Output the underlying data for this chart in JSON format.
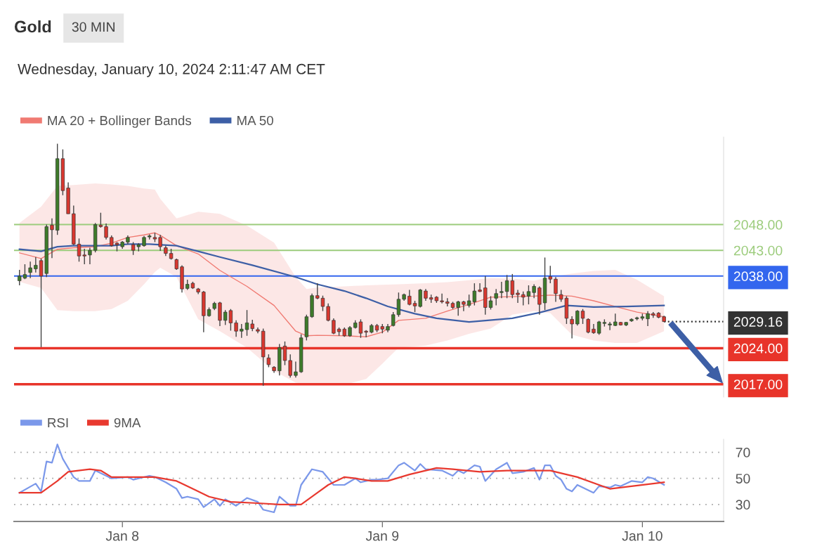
{
  "chart_data": [
    {
      "type": "candlestick",
      "title": "Gold",
      "subtitle": "30 MIN",
      "annotations": [
        "Wednesday, January 10, 2024 2:11:47 AM CET"
      ],
      "x": [
        "2024-01-07T14:30",
        "2024-01-07T15:00",
        "2024-01-07T15:30",
        "2024-01-07T16:00",
        "2024-01-07T16:30",
        "2024-01-07T17:00",
        "2024-01-07T17:30",
        "2024-01-07T18:00",
        "2024-01-07T18:30",
        "2024-01-07T19:00",
        "2024-01-07T19:30",
        "2024-01-07T20:00",
        "2024-01-07T20:30",
        "2024-01-07T21:00",
        "2024-01-07T21:30",
        "2024-01-07T22:00",
        "2024-01-07T22:30",
        "2024-01-07T23:00",
        "2024-01-07T23:30",
        "2024-01-08T00:00",
        "2024-01-08T00:30",
        "2024-01-08T01:00",
        "2024-01-08T01:30",
        "2024-01-08T02:00",
        "2024-01-08T02:30",
        "2024-01-08T03:00",
        "2024-01-08T03:30",
        "2024-01-08T04:00",
        "2024-01-08T04:30",
        "2024-01-08T05:00",
        "2024-01-08T05:30",
        "2024-01-08T06:00",
        "2024-01-08T06:30",
        "2024-01-08T07:00",
        "2024-01-08T07:30",
        "2024-01-08T08:00",
        "2024-01-08T08:30",
        "2024-01-08T09:00",
        "2024-01-08T09:30",
        "2024-01-08T10:00",
        "2024-01-08T10:30",
        "2024-01-08T11:00",
        "2024-01-08T11:30",
        "2024-01-08T12:00",
        "2024-01-08T12:30",
        "2024-01-08T13:00",
        "2024-01-08T13:30",
        "2024-01-08T14:00",
        "2024-01-08T14:30",
        "2024-01-08T15:00",
        "2024-01-08T15:30",
        "2024-01-08T16:00",
        "2024-01-08T16:30",
        "2024-01-08T17:00",
        "2024-01-08T17:30",
        "2024-01-08T18:00",
        "2024-01-08T18:30",
        "2024-01-08T19:00",
        "2024-01-08T19:30",
        "2024-01-08T20:00",
        "2024-01-08T20:30",
        "2024-01-08T21:00",
        "2024-01-08T21:30",
        "2024-01-08T22:00",
        "2024-01-08T22:30",
        "2024-01-08T23:00",
        "2024-01-08T23:30",
        "2024-01-09T00:00",
        "2024-01-09T00:30",
        "2024-01-09T01:00",
        "2024-01-09T01:30",
        "2024-01-09T02:00",
        "2024-01-09T02:30",
        "2024-01-09T03:00",
        "2024-01-09T03:30",
        "2024-01-09T04:00",
        "2024-01-09T04:30",
        "2024-01-09T05:00",
        "2024-01-09T05:30",
        "2024-01-09T06:00",
        "2024-01-09T06:30",
        "2024-01-09T07:00",
        "2024-01-09T07:30",
        "2024-01-09T08:00",
        "2024-01-09T08:30",
        "2024-01-09T09:00",
        "2024-01-09T09:30",
        "2024-01-09T10:00",
        "2024-01-09T10:30",
        "2024-01-09T11:00",
        "2024-01-09T11:30",
        "2024-01-09T12:00",
        "2024-01-09T12:30",
        "2024-01-09T13:00",
        "2024-01-09T13:30",
        "2024-01-09T14:00",
        "2024-01-09T14:30",
        "2024-01-09T15:00",
        "2024-01-09T15:30",
        "2024-01-09T16:00",
        "2024-01-09T16:30",
        "2024-01-09T17:00",
        "2024-01-09T17:30",
        "2024-01-09T18:00",
        "2024-01-09T18:30",
        "2024-01-09T19:00",
        "2024-01-09T19:30",
        "2024-01-09T20:00",
        "2024-01-09T20:30",
        "2024-01-09T21:00",
        "2024-01-09T21:30",
        "2024-01-09T22:00",
        "2024-01-09T22:30",
        "2024-01-09T23:00",
        "2024-01-09T23:30",
        "2024-01-10T00:00",
        "2024-01-10T00:30",
        "2024-01-10T01:00",
        "2024-01-10T01:30",
        "2024-01-10T02:00"
      ],
      "ohlc": [
        [
          2037.1,
          2039.2,
          2036.2,
          2038.0
        ],
        [
          2037.6,
          2040.3,
          2037.4,
          2038.3
        ],
        [
          2038.7,
          2040.8,
          2037.6,
          2039.6
        ],
        [
          2039.4,
          2041.7,
          2038.7,
          2040.1
        ],
        [
          2041.0,
          2041.4,
          2024.2,
          2038.0
        ],
        [
          2038.5,
          2048.0,
          2037.8,
          2047.6
        ],
        [
          2047.9,
          2049.2,
          2041.5,
          2047.0
        ],
        [
          2046.9,
          2063.7,
          2046.0,
          2060.8
        ],
        [
          2060.8,
          2062.6,
          2053.7,
          2054.6
        ],
        [
          2055.1,
          2056.2,
          2050.1,
          2050.1
        ],
        [
          2050.1,
          2051.7,
          2044.0,
          2044.2
        ],
        [
          2044.2,
          2045.3,
          2040.8,
          2041.9
        ],
        [
          2042.1,
          2043.3,
          2040.3,
          2041.9
        ],
        [
          2042.1,
          2043.5,
          2040.3,
          2043.0
        ],
        [
          2043.0,
          2048.3,
          2042.6,
          2048.0
        ],
        [
          2047.9,
          2050.3,
          2047.4,
          2047.6
        ],
        [
          2047.6,
          2048.2,
          2045.1,
          2045.5
        ],
        [
          2045.5,
          2045.9,
          2043.7,
          2043.9
        ],
        [
          2044.4,
          2044.6,
          2042.8,
          2044.1
        ],
        [
          2043.7,
          2044.8,
          2043.3,
          2044.6
        ],
        [
          2044.6,
          2045.9,
          2044.2,
          2045.5
        ],
        [
          2044.1,
          2044.6,
          2042.1,
          2043.0
        ],
        [
          2043.7,
          2044.4,
          2042.8,
          2044.1
        ],
        [
          2043.9,
          2045.8,
          2043.7,
          2045.5
        ],
        [
          2045.6,
          2046.1,
          2045.1,
          2045.8
        ],
        [
          2045.5,
          2046.4,
          2044.6,
          2045.2
        ],
        [
          2045.5,
          2046.0,
          2042.9,
          2043.7
        ],
        [
          2043.5,
          2043.9,
          2041.9,
          2042.4
        ],
        [
          2042.4,
          2043.3,
          2041.2,
          2041.4
        ],
        [
          2041.2,
          2041.4,
          2039.2,
          2039.4
        ],
        [
          2039.8,
          2040.1,
          2034.8,
          2035.5
        ],
        [
          2035.6,
          2037.3,
          2035.3,
          2036.4
        ],
        [
          2036.6,
          2036.9,
          2035.5,
          2035.7
        ],
        [
          2035.5,
          2035.7,
          2034.5,
          2034.9
        ],
        [
          2034.9,
          2035.1,
          2027.1,
          2030.3
        ],
        [
          2030.3,
          2031.9,
          2030.1,
          2031.5
        ],
        [
          2031.7,
          2033.0,
          2031.4,
          2032.7
        ],
        [
          2032.8,
          2033.0,
          2028.3,
          2029.4
        ],
        [
          2029.4,
          2031.4,
          2028.5,
          2031.0
        ],
        [
          2031.3,
          2031.6,
          2027.4,
          2028.9
        ],
        [
          2028.9,
          2029.4,
          2026.2,
          2027.3
        ],
        [
          2027.3,
          2028.7,
          2026.0,
          2027.7
        ],
        [
          2027.6,
          2031.4,
          2026.4,
          2028.9
        ],
        [
          2028.7,
          2029.5,
          2027.3,
          2027.8
        ],
        [
          2027.6,
          2028.0,
          2026.9,
          2027.3
        ],
        [
          2027.3,
          2027.8,
          2016.7,
          2022.3
        ],
        [
          2022.1,
          2022.8,
          2020.3,
          2020.8
        ],
        [
          2020.3,
          2020.5,
          2019.2,
          2019.6
        ],
        [
          2019.6,
          2024.8,
          2018.7,
          2024.1
        ],
        [
          2024.4,
          2025.3,
          2020.7,
          2021.6
        ],
        [
          2021.6,
          2022.8,
          2018.3,
          2018.7
        ],
        [
          2018.7,
          2021.4,
          2018.3,
          2019.4
        ],
        [
          2019.4,
          2026.7,
          2019.2,
          2026.0
        ],
        [
          2026.2,
          2030.5,
          2025.5,
          2030.1
        ],
        [
          2030.1,
          2034.6,
          2029.9,
          2034.2
        ],
        [
          2034.2,
          2036.6,
          2033.5,
          2033.7
        ],
        [
          2033.7,
          2034.2,
          2031.2,
          2032.1
        ],
        [
          2032.1,
          2032.7,
          2029.2,
          2029.4
        ],
        [
          2029.4,
          2029.8,
          2026.7,
          2026.9
        ],
        [
          2027.7,
          2028.0,
          2026.4,
          2027.2
        ],
        [
          2027.7,
          2028.0,
          2026.2,
          2026.4
        ],
        [
          2026.4,
          2028.3,
          2026.2,
          2028.0
        ],
        [
          2028.0,
          2029.4,
          2027.8,
          2028.9
        ],
        [
          2029.1,
          2029.6,
          2026.0,
          2026.9
        ],
        [
          2027.3,
          2027.5,
          2026.1,
          2027.1
        ],
        [
          2027.1,
          2028.7,
          2026.9,
          2028.4
        ],
        [
          2028.4,
          2028.7,
          2027.1,
          2027.5
        ],
        [
          2028.2,
          2028.7,
          2026.9,
          2027.7
        ],
        [
          2027.5,
          2028.7,
          2027.1,
          2028.2
        ],
        [
          2028.4,
          2031.0,
          2028.2,
          2030.5
        ],
        [
          2030.5,
          2034.8,
          2030.1,
          2033.5
        ],
        [
          2033.5,
          2034.6,
          2033.2,
          2034.4
        ],
        [
          2034.1,
          2035.3,
          2032.3,
          2032.5
        ],
        [
          2032.7,
          2033.2,
          2031.0,
          2032.2
        ],
        [
          2032.1,
          2035.5,
          2031.9,
          2035.3
        ],
        [
          2035.1,
          2035.5,
          2033.2,
          2033.7
        ],
        [
          2033.8,
          2034.4,
          2032.8,
          2033.5
        ],
        [
          2033.9,
          2034.1,
          2032.8,
          2033.2
        ],
        [
          2033.2,
          2034.6,
          2032.7,
          2033.0
        ],
        [
          2033.0,
          2033.7,
          2032.1,
          2032.7
        ],
        [
          2032.7,
          2033.0,
          2031.6,
          2031.9
        ],
        [
          2031.9,
          2033.2,
          2030.3,
          2033.0
        ],
        [
          2033.0,
          2033.2,
          2031.2,
          2032.5
        ],
        [
          2032.3,
          2034.4,
          2031.9,
          2033.2
        ],
        [
          2033.0,
          2036.6,
          2032.3,
          2035.1
        ],
        [
          2035.3,
          2036.6,
          2034.9,
          2035.0
        ],
        [
          2035.7,
          2038.0,
          2030.5,
          2031.9
        ],
        [
          2031.9,
          2034.1,
          2031.5,
          2033.2
        ],
        [
          2033.7,
          2035.5,
          2032.3,
          2034.6
        ],
        [
          2034.8,
          2036.9,
          2033.7,
          2035.0
        ],
        [
          2035.0,
          2038.2,
          2033.7,
          2037.1
        ],
        [
          2037.1,
          2038.4,
          2033.7,
          2034.4
        ],
        [
          2034.7,
          2035.3,
          2032.8,
          2034.4
        ],
        [
          2034.4,
          2035.0,
          2032.3,
          2033.9
        ],
        [
          2034.1,
          2036.2,
          2032.5,
          2035.0
        ],
        [
          2034.8,
          2036.4,
          2033.7,
          2036.0
        ],
        [
          2035.7,
          2036.0,
          2030.5,
          2032.5
        ],
        [
          2032.8,
          2041.6,
          2031.4,
          2037.6
        ],
        [
          2037.9,
          2040.0,
          2036.6,
          2037.4
        ],
        [
          2037.4,
          2037.8,
          2033.0,
          2034.6
        ],
        [
          2034.4,
          2035.3,
          2033.0,
          2033.5
        ],
        [
          2033.7,
          2034.1,
          2028.7,
          2029.8
        ],
        [
          2029.6,
          2030.2,
          2025.9,
          2028.7
        ],
        [
          2028.7,
          2031.4,
          2028.4,
          2031.2
        ],
        [
          2031.2,
          2031.6,
          2028.7,
          2029.8
        ],
        [
          2029.6,
          2029.8,
          2026.9,
          2027.1
        ],
        [
          2027.7,
          2028.7,
          2026.8,
          2027.0
        ],
        [
          2026.9,
          2029.3,
          2026.6,
          2029.1
        ],
        [
          2028.8,
          2029.6,
          2028.2,
          2029.0
        ],
        [
          2028.5,
          2029.1,
          2027.5,
          2028.7
        ],
        [
          2028.4,
          2030.7,
          2028.3,
          2029.1
        ],
        [
          2029.0,
          2029.1,
          2028.4,
          2028.5
        ],
        [
          2028.5,
          2029.1,
          2028.3,
          2029.0
        ],
        [
          2029.3,
          2029.8,
          2029.1,
          2029.6
        ],
        [
          2029.7,
          2030.1,
          2029.4,
          2029.9
        ],
        [
          2029.8,
          2030.7,
          2029.4,
          2030.1
        ],
        [
          2029.7,
          2031.2,
          2028.3,
          2030.7
        ],
        [
          2030.7,
          2031.0,
          2029.9,
          2030.4
        ],
        [
          2030.8,
          2031.0,
          2029.8,
          2030.0
        ],
        [
          2030.1,
          2030.3,
          2029.1,
          2029.16
        ]
      ],
      "series": [
        {
          "name": "MA 20 + Bollinger Bands",
          "type": "line",
          "color": "#f07a72",
          "x": [
            "2024-01-07T14:30",
            "2024-01-07T16:30",
            "2024-01-07T18:00",
            "2024-01-07T19:30",
            "2024-01-07T21:30",
            "2024-01-07T23:00",
            "2024-01-08T00:30",
            "2024-01-08T02:00",
            "2024-01-08T03:00",
            "2024-01-08T03:30",
            "2024-01-08T05:00",
            "2024-01-08T07:00",
            "2024-01-08T09:00",
            "2024-01-08T11:30",
            "2024-01-08T14:00",
            "2024-01-08T16:00",
            "2024-01-08T17:00",
            "2024-01-08T18:00",
            "2024-01-08T20:30",
            "2024-01-08T22:30",
            "2024-01-09T00:00",
            "2024-01-09T01:30",
            "2024-01-09T04:00",
            "2024-01-09T06:00",
            "2024-01-09T08:00",
            "2024-01-09T10:00",
            "2024-01-09T12:00",
            "2024-01-09T14:00",
            "2024-01-09T15:30",
            "2024-01-09T17:30",
            "2024-01-09T19:30",
            "2024-01-09T21:30",
            "2024-01-09T23:30",
            "2024-01-10T02:00"
          ],
          "values": [
            2042.5,
            2041.4,
            2043.2,
            2043.5,
            2043.7,
            2044.4,
            2045.5,
            2046.0,
            2046.4,
            2045.9,
            2043.9,
            2042.3,
            2039.1,
            2036.0,
            2032.3,
            2027.3,
            2026.4,
            2026.5,
            2026.4,
            2026.2,
            2027.1,
            2029.4,
            2029.8,
            2031.2,
            2032.5,
            2033.9,
            2034.0,
            2034.1,
            2034.3,
            2034.1,
            2033.2,
            2032.1,
            2031.0,
            2030.1
          ],
          "lower": [
            2036.9,
            2035.7,
            2031.4,
            2031.2,
            2031.2,
            2031.6,
            2033.2,
            2036.4,
            2038.8,
            2039.6,
            2037.8,
            2029.6,
            2027.3,
            2024.1,
            2019.6,
            2017.3,
            2017.0,
            2016.9,
            2016.9,
            2018.0,
            2021.0,
            2024.1,
            2024.5,
            2025.5,
            2026.8,
            2027.8,
            2030.5,
            2031.2,
            2030.8,
            2026.6,
            2025.5,
            2025.0,
            2025.0,
            2027.3
          ],
          "upper": [
            2048.3,
            2051.5,
            2055.5,
            2055.7,
            2056.0,
            2055.8,
            2055.5,
            2055.0,
            2054.8,
            2053.0,
            2049.2,
            2050.5,
            2050.1,
            2047.8,
            2044.5,
            2037.8,
            2035.5,
            2035.8,
            2036.0,
            2036.2,
            2036.3,
            2036.4,
            2036.6,
            2036.8,
            2037.2,
            2037.6,
            2037.5,
            2037.1,
            2037.8,
            2038.5,
            2039.0,
            2039.2,
            2037.3,
            2034.1
          ]
        },
        {
          "name": "MA 50",
          "type": "line",
          "color": "#3d5fa6",
          "x": [
            "2024-01-07T14:30",
            "2024-01-07T16:30",
            "2024-01-07T18:00",
            "2024-01-07T19:30",
            "2024-01-07T23:00",
            "2024-01-08T00:30",
            "2024-01-08T02:30",
            "2024-01-08T05:00",
            "2024-01-08T07:00",
            "2024-01-08T09:00",
            "2024-01-08T12:00",
            "2024-01-08T16:00",
            "2024-01-08T18:00",
            "2024-01-08T20:30",
            "2024-01-08T22:30",
            "2024-01-09T00:30",
            "2024-01-09T03:00",
            "2024-01-09T05:00",
            "2024-01-09T08:00",
            "2024-01-09T12:00",
            "2024-01-09T14:30",
            "2024-01-09T17:00",
            "2024-01-09T19:30",
            "2024-01-09T22:30",
            "2024-01-10T02:00"
          ],
          "values": [
            2043.2,
            2042.8,
            2043.7,
            2043.9,
            2043.9,
            2044.2,
            2044.2,
            2043.9,
            2042.8,
            2041.7,
            2040.1,
            2037.8,
            2036.4,
            2035.1,
            2033.7,
            2032.1,
            2030.7,
            2029.8,
            2029.1,
            2029.8,
            2030.9,
            2032.3,
            2032.0,
            2032.1,
            2032.3
          ]
        }
      ],
      "ref_lines": [
        {
          "axis": "y",
          "value": 2048,
          "color": "#9ccc7c",
          "line_style": "solid"
        },
        {
          "axis": "y",
          "value": 2043,
          "color": "#9ccc7c",
          "line_style": "solid"
        },
        {
          "axis": "y",
          "value": 2038,
          "color": "#3366ee",
          "line_style": "solid"
        },
        {
          "axis": "y",
          "value": 2029.16,
          "color": "#333333",
          "line_style": "dotted"
        },
        {
          "axis": "y",
          "value": 2024,
          "color": "#e8342a",
          "line_style": "solid"
        },
        {
          "axis": "y",
          "value": 2017,
          "color": "#e8342a",
          "line_style": "solid"
        }
      ],
      "xlim": [
        "2024-01-07T14:00",
        "2024-01-10T07:30"
      ],
      "ylim": [
        2014.5,
        2065
      ],
      "yticks": [
        {
          "value": 2017,
          "label": "2017.00"
        },
        {
          "value": 2024,
          "label": "2024.00"
        },
        {
          "value": 2029.16,
          "label": "2029.16"
        },
        {
          "value": 2038,
          "label": "2038.00"
        },
        {
          "value": 2043,
          "label": "2043.00"
        },
        {
          "value": 2048,
          "label": "2048.00"
        }
      ],
      "tick_labels": "y",
      "grid": false,
      "legend": "top left"
    },
    {
      "type": "line",
      "series": [
        {
          "name": "RSI",
          "color": "#7b98ea",
          "x": [
            "2024-01-07T14:30",
            "2024-01-07T16:00",
            "2024-01-07T16:30",
            "2024-01-07T17:00",
            "2024-01-07T17:30",
            "2024-01-07T18:00",
            "2024-01-07T18:30",
            "2024-01-07T19:30",
            "2024-01-07T20:00",
            "2024-01-07T21:00",
            "2024-01-07T21:30",
            "2024-01-07T23:00",
            "2024-01-08T00:30",
            "2024-01-08T01:00",
            "2024-01-08T02:30",
            "2024-01-08T03:00",
            "2024-01-08T04:00",
            "2024-01-08T05:00",
            "2024-01-08T05:30",
            "2024-01-08T06:00",
            "2024-01-08T07:00",
            "2024-01-08T07:30",
            "2024-01-08T08:30",
            "2024-01-08T09:00",
            "2024-01-08T09:30",
            "2024-01-08T10:30",
            "2024-01-08T11:30",
            "2024-01-08T12:30",
            "2024-01-08T13:00",
            "2024-01-08T14:00",
            "2024-01-08T14:30",
            "2024-01-08T15:30",
            "2024-01-08T16:00",
            "2024-01-08T16:30",
            "2024-01-08T17:30",
            "2024-01-08T18:30",
            "2024-01-08T19:30",
            "2024-01-08T20:30",
            "2024-01-08T21:30",
            "2024-01-08T22:00",
            "2024-01-08T23:00",
            "2024-01-08T23:30",
            "2024-01-09T00:30",
            "2024-01-09T01:30",
            "2024-01-09T02:00",
            "2024-01-09T03:00",
            "2024-01-09T03:30",
            "2024-01-09T04:00",
            "2024-01-09T05:30",
            "2024-01-09T06:30",
            "2024-01-09T07:00",
            "2024-01-09T07:30",
            "2024-01-09T08:30",
            "2024-01-09T09:00",
            "2024-01-09T09:30",
            "2024-01-09T10:30",
            "2024-01-09T11:30",
            "2024-01-09T12:00",
            "2024-01-09T13:00",
            "2024-01-09T14:00",
            "2024-01-09T14:30",
            "2024-01-09T15:00",
            "2024-01-09T15:30",
            "2024-01-09T16:00",
            "2024-01-09T16:30",
            "2024-01-09T17:00",
            "2024-01-09T17:30",
            "2024-01-09T18:00",
            "2024-01-09T19:30",
            "2024-01-09T20:00",
            "2024-01-09T21:00",
            "2024-01-09T21:30",
            "2024-01-09T22:00",
            "2024-01-09T23:00",
            "2024-01-10T00:00",
            "2024-01-10T00:30",
            "2024-01-10T01:00",
            "2024-01-10T02:00"
          ],
          "values": [
            39,
            46,
            40,
            63,
            62,
            76,
            65,
            51,
            48,
            48,
            56,
            50,
            51,
            49,
            52,
            51,
            47,
            42,
            35,
            36,
            34,
            28,
            34,
            29,
            34,
            29,
            35,
            32,
            26,
            24,
            36,
            29,
            29,
            45,
            57,
            55,
            45,
            45,
            50,
            47,
            49,
            49,
            50,
            60,
            62,
            56,
            61,
            57,
            56,
            52,
            56,
            54,
            60,
            59,
            48,
            57,
            62,
            54,
            55,
            58,
            49,
            60,
            60,
            52,
            49,
            42,
            40,
            45,
            39,
            44,
            43,
            45,
            44,
            48,
            47,
            51,
            50,
            45
          ]
        },
        {
          "name": "9MA",
          "color": "#e8392f",
          "x": [
            "2024-01-07T14:30",
            "2024-01-07T16:30",
            "2024-01-07T18:00",
            "2024-01-07T19:00",
            "2024-01-07T21:00",
            "2024-01-07T22:00",
            "2024-01-07T23:00",
            "2024-01-08T00:30",
            "2024-01-08T03:00",
            "2024-01-08T05:00",
            "2024-01-08T06:30",
            "2024-01-08T08:00",
            "2024-01-08T10:00",
            "2024-01-08T12:30",
            "2024-01-08T14:30",
            "2024-01-08T16:30",
            "2024-01-08T18:00",
            "2024-01-08T19:00",
            "2024-01-08T20:30",
            "2024-01-08T21:30",
            "2024-01-08T23:00",
            "2024-01-09T00:30",
            "2024-01-09T02:30",
            "2024-01-09T05:00",
            "2024-01-09T06:30",
            "2024-01-09T09:00",
            "2024-01-09T11:30",
            "2024-01-09T13:30",
            "2024-01-09T15:30",
            "2024-01-09T18:00",
            "2024-01-09T20:00",
            "2024-01-09T21:00",
            "2024-01-09T23:00",
            "2024-01-10T02:00"
          ],
          "values": [
            39,
            39,
            48,
            55,
            57,
            56,
            51,
            51,
            51,
            48,
            42,
            36,
            32,
            31,
            30,
            30,
            39,
            45,
            51,
            50,
            48,
            48,
            53,
            58,
            57,
            55,
            56,
            56,
            56,
            51,
            45,
            42,
            44,
            47
          ]
        }
      ],
      "xlim": [
        "2024-01-07T14:00",
        "2024-01-10T07:30"
      ],
      "ylim": [
        17,
        80
      ],
      "yticks": [
        30,
        50,
        70
      ],
      "xticks": [
        {
          "value": "2024-01-08",
          "label": "Jan 8"
        },
        {
          "value": "2024-01-09",
          "label": "Jan 9"
        },
        {
          "value": "2024-01-10",
          "label": "Jan 10"
        }
      ],
      "grid": "y",
      "legend": "top left"
    }
  ]
}
